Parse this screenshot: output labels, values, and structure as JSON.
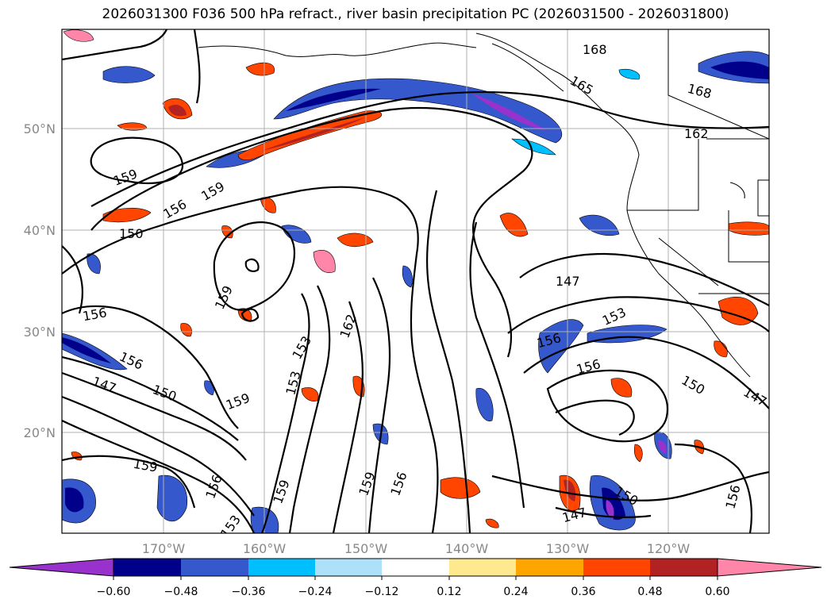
{
  "title": "2026031300 F036 500 hPa refract., river basin precipitation PC (2026031500 - 2026031800)",
  "map": {
    "lat_labels": [
      "50°N",
      "40°N",
      "30°N",
      "20°N"
    ],
    "lon_labels": [
      "170°W",
      "160°W",
      "150°W",
      "140°W",
      "130°W",
      "120°W"
    ],
    "contour_labels": [
      "168",
      "165",
      "168",
      "162",
      "159",
      "159",
      "156",
      "159",
      "156",
      "159",
      "162",
      "153",
      "153",
      "156",
      "147",
      "150",
      "159",
      "156",
      "159",
      "156",
      "153",
      "159",
      "156",
      "150",
      "147",
      "150",
      "147",
      "153",
      "156",
      "156",
      "147",
      "150"
    ]
  },
  "colorbar": {
    "ticks": [
      "−0.60",
      "−0.48",
      "−0.36",
      "−0.24",
      "−0.12",
      "0.12",
      "0.24",
      "0.36",
      "0.48",
      "0.60"
    ],
    "colors": [
      "#9932CC",
      "#00008B",
      "#3559CC",
      "#00BFFF",
      "#ADE1FA",
      "#FFFFFF",
      "#FFE98F",
      "#FFA500",
      "#FF4500",
      "#B22222",
      "#FF85A9"
    ]
  }
}
